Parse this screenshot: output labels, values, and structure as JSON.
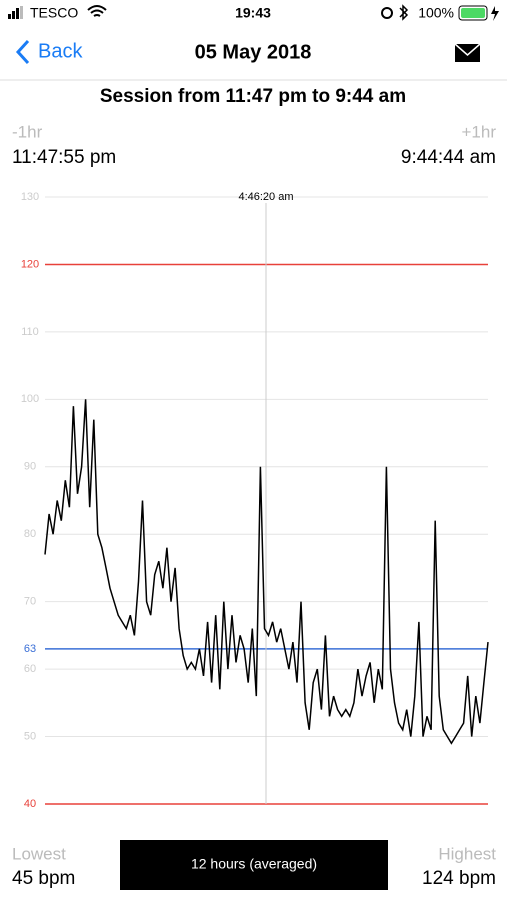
{
  "status_bar": {
    "carrier": "TESCO",
    "time": "19:43",
    "battery": "100%"
  },
  "nav": {
    "back": "Back",
    "title": "05 May 2018"
  },
  "session_title": "Session from 11:47 pm to 9:44 am",
  "range": {
    "minus": "-1hr",
    "plus": "+1hr",
    "start": "11:47:55 pm",
    "end": "9:44:44 am"
  },
  "chart_data": {
    "type": "line",
    "color": "#000000",
    "ylim": [
      40,
      130
    ],
    "yticks": [
      50,
      60,
      70,
      80,
      90,
      100,
      110,
      130
    ],
    "grid": true,
    "reference_lines": [
      {
        "value": 120,
        "color": "#e8413a"
      },
      {
        "value": 40,
        "color": "#e8413a"
      },
      {
        "value": 63,
        "color": "#3a6fd6"
      }
    ],
    "cursor_label": "4:46:20 am",
    "values": [
      77,
      83,
      80,
      85,
      82,
      88,
      84,
      99,
      86,
      90,
      100,
      84,
      97,
      80,
      78,
      75,
      72,
      70,
      68,
      67,
      66,
      68,
      65,
      73,
      85,
      70,
      68,
      74,
      76,
      72,
      78,
      70,
      75,
      66,
      62,
      60,
      61,
      60,
      63,
      59,
      67,
      58,
      68,
      57,
      70,
      60,
      68,
      61,
      65,
      63,
      58,
      66,
      56,
      90,
      66,
      65,
      67,
      64,
      66,
      63,
      60,
      64,
      58,
      70,
      55,
      51,
      58,
      60,
      54,
      65,
      53,
      56,
      54,
      53,
      54,
      53,
      55,
      60,
      56,
      59,
      61,
      55,
      60,
      57,
      90,
      60,
      55,
      52,
      51,
      54,
      50,
      56,
      67,
      50,
      53,
      51,
      82,
      56,
      51,
      50,
      49,
      50,
      51,
      52,
      59,
      50,
      56,
      52,
      58,
      64
    ]
  },
  "footer": {
    "lowest_label": "Lowest",
    "lowest_value": "45 bpm",
    "mode": "12 hours (averaged)",
    "highest_label": "Highest",
    "highest_value": "124 bpm"
  }
}
